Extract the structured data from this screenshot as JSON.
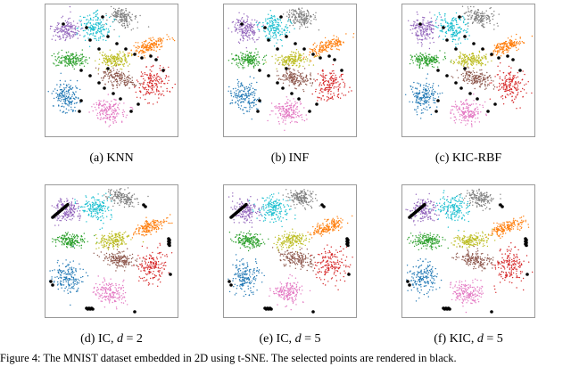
{
  "palette": [
    "#1f77b4",
    "#ff7f0e",
    "#2ca02c",
    "#d62728",
    "#9467bd",
    "#8c564b",
    "#e377c2",
    "#7f7f7f",
    "#bcbd22",
    "#17becf"
  ],
  "marker_color": "#000000",
  "panels": [
    {
      "caption": "(a) KNN",
      "highlight": "scattered"
    },
    {
      "caption": "(b) INF",
      "highlight": "scattered"
    },
    {
      "caption": "(c) KIC-RBF",
      "highlight": "scattered"
    },
    {
      "caption_prefix": "(d) IC, ",
      "caption_var": "d",
      "caption_suffix": " = 2",
      "highlight": "boundary"
    },
    {
      "caption_prefix": "(e) IC, ",
      "caption_var": "d",
      "caption_suffix": " = 5",
      "highlight": "boundary"
    },
    {
      "caption_prefix": "(f) KIC, ",
      "caption_var": "d",
      "caption_suffix": " = 5",
      "highlight": "boundary"
    }
  ],
  "footer_text": "Figure 4: The MNIST dataset embedded in 2D using t-SNE. The selected points are rendered in black."
}
